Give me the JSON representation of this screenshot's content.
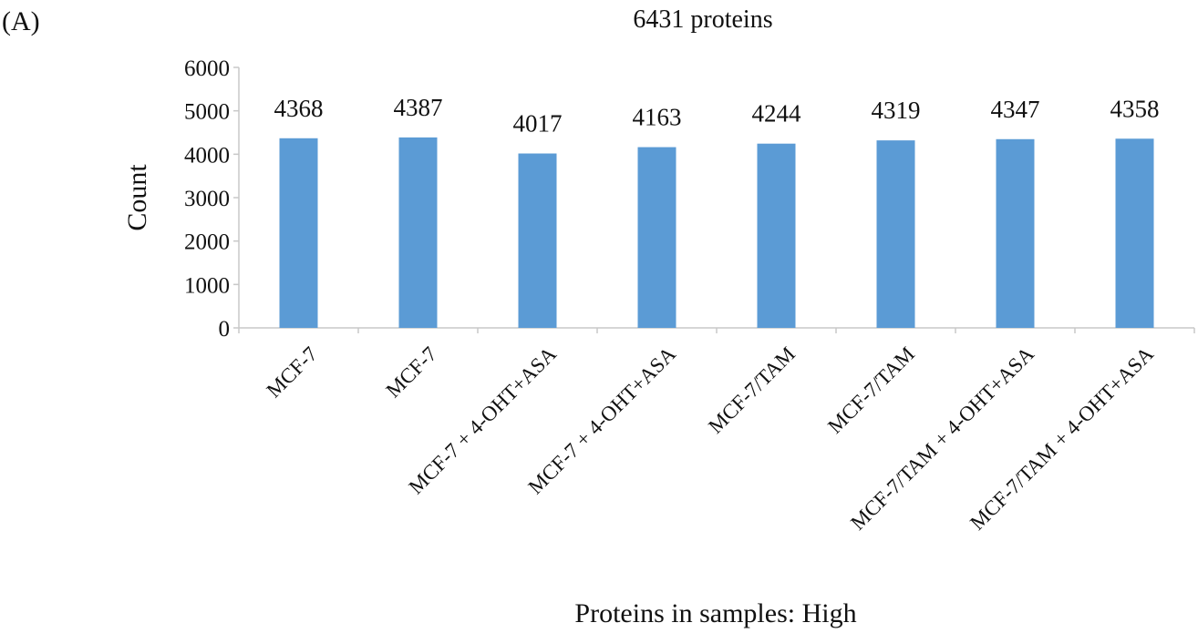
{
  "panel_label": "(A)",
  "chart_data": {
    "type": "bar",
    "title": "6431 proteins",
    "xlabel": "Proteins in samples: High",
    "ylabel": "Count",
    "ylim": [
      0,
      6000
    ],
    "yticks": [
      0,
      1000,
      2000,
      3000,
      4000,
      5000,
      6000
    ],
    "grid": false,
    "categories": [
      "MCF-7",
      "MCF-7",
      "MCF-7 + 4-OHT+ASA",
      "MCF-7 + 4-OHT+ASA",
      "MCF-7/TAM",
      "MCF-7/TAM",
      "MCF-7/TAM + 4-OHT+ASA",
      "MCF-7/TAM + 4-OHT+ASA"
    ],
    "values": [
      4368,
      4387,
      4017,
      4163,
      4244,
      4319,
      4347,
      4358
    ],
    "bar_color": "#5b9bd5"
  }
}
